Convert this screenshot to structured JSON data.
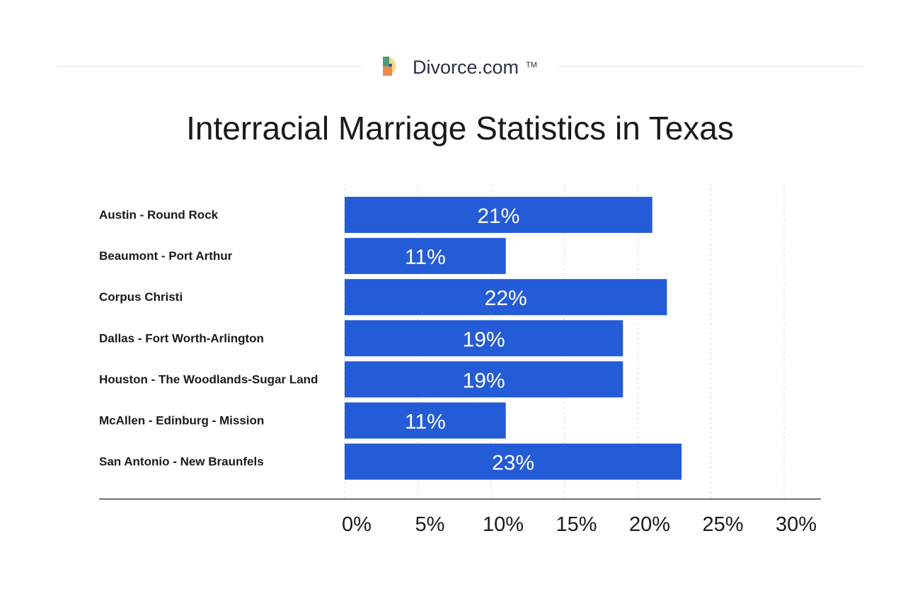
{
  "brand": {
    "name": "Divorce.com",
    "trademark": "TM",
    "logo_icon": "divorce-com-logo-icon",
    "colors": {
      "green": "#4a9e78",
      "yellow": "#f3d98c",
      "orange": "#ee8a4f",
      "blue": "#2c60b0"
    }
  },
  "chart_data": {
    "type": "bar",
    "orientation": "horizontal",
    "title": "Interracial Marriage Statistics in Texas",
    "categories": [
      "Austin - Round Rock",
      "Beaumont - Port Arthur",
      "Corpus Christi",
      "Dallas - Fort Worth-Arlington",
      "Houston - The Woodlands-Sugar Land",
      "McAllen - Edinburg - Mission",
      "San Antonio - New Braunfels"
    ],
    "values": [
      21,
      11,
      22,
      19,
      19,
      11,
      23
    ],
    "data_labels": [
      "21%",
      "11%",
      "22%",
      "19%",
      "19%",
      "11%",
      "23%"
    ],
    "x_ticks": [
      0,
      5,
      10,
      15,
      20,
      25,
      30
    ],
    "x_tick_labels": [
      "0%",
      "5%",
      "10%",
      "15%",
      "20%",
      "25%",
      "30%"
    ],
    "xlim": [
      0,
      30
    ],
    "xlabel": "",
    "ylabel": "",
    "grid": true,
    "legend": "none",
    "bar_color": "#245bd7"
  }
}
